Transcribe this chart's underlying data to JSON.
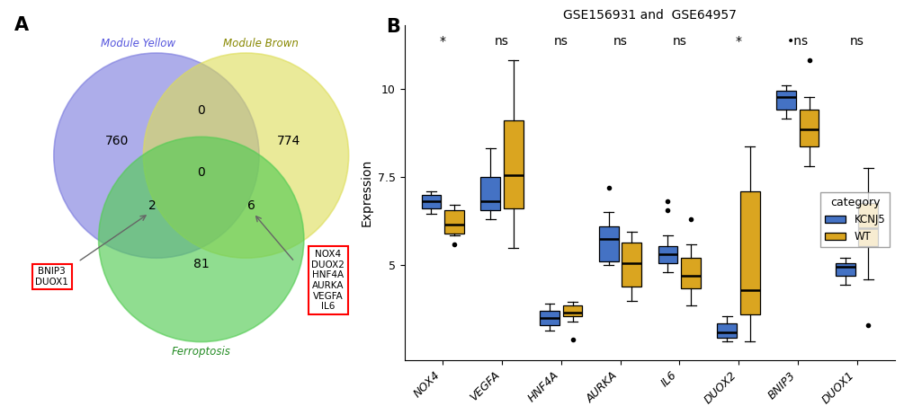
{
  "venn": {
    "labels": [
      "Module Yellow",
      "Module Brown",
      "Ferroptosis"
    ],
    "label_colors": [
      "#5555dd",
      "#888800",
      "#228B22"
    ],
    "circle_colors": [
      "#7777dd",
      "#dddd55",
      "#55cc55"
    ],
    "circle_alphas": [
      0.6,
      0.6,
      0.65
    ],
    "counts": {
      "yellow_only": "760",
      "brown_only": "774",
      "ferroptosis_only": "81",
      "yellow_brown": "0",
      "yellow_ferroptosis": "2",
      "brown_ferroptosis": "6",
      "all_three": "0"
    },
    "left_box_genes": [
      "BNIP3",
      "DUOX1"
    ],
    "right_box_genes": [
      "NOX4",
      "DUOX2",
      "HNF4A",
      "AURKA",
      "VEGFA",
      "IL6"
    ]
  },
  "boxplot": {
    "title": "GSE156931 and  GSE64957",
    "ylabel": "Expression",
    "genes": [
      "NOX4",
      "VEGFA",
      "HNF4A",
      "AURKA",
      "IL6",
      "DUOX2",
      "BNIP3",
      "DUOX1"
    ],
    "significance": [
      "*",
      "ns",
      "ns",
      "ns",
      "ns",
      "*",
      "•ns",
      "ns"
    ],
    "KCNJ5_color": "#4472c4",
    "WT_color": "#DAA520",
    "KCNJ5_data": {
      "NOX4": {
        "whislo": 6.45,
        "q1": 6.6,
        "med": 6.82,
        "q3": 6.98,
        "whishi": 7.1,
        "fliers": []
      },
      "VEGFA": {
        "whislo": 6.3,
        "q1": 6.55,
        "med": 6.8,
        "q3": 7.5,
        "whishi": 8.3,
        "fliers": []
      },
      "HNF4A": {
        "whislo": 3.15,
        "q1": 3.3,
        "med": 3.5,
        "q3": 3.7,
        "whishi": 3.9,
        "fliers": []
      },
      "AURKA": {
        "whislo": 5.0,
        "q1": 5.1,
        "med": 5.75,
        "q3": 6.1,
        "whishi": 6.5,
        "fliers": [
          7.2
        ]
      },
      "IL6": {
        "whislo": 4.8,
        "q1": 5.05,
        "med": 5.3,
        "q3": 5.55,
        "whishi": 5.85,
        "fliers": [
          6.55,
          6.8
        ]
      },
      "DUOX2": {
        "whislo": 2.85,
        "q1": 2.95,
        "med": 3.1,
        "q3": 3.35,
        "whishi": 3.55,
        "fliers": []
      },
      "BNIP3": {
        "whislo": 9.15,
        "q1": 9.4,
        "med": 9.75,
        "q3": 9.95,
        "whishi": 10.1,
        "fliers": []
      },
      "DUOX1": {
        "whislo": 4.45,
        "q1": 4.7,
        "med": 4.95,
        "q3": 5.05,
        "whishi": 5.2,
        "fliers": []
      }
    },
    "WT_data": {
      "NOX4": {
        "whislo": 5.85,
        "q1": 5.9,
        "med": 6.15,
        "q3": 6.55,
        "whishi": 6.7,
        "fliers": [
          5.6
        ]
      },
      "VEGFA": {
        "whislo": 5.5,
        "q1": 6.6,
        "med": 7.55,
        "q3": 9.1,
        "whishi": 10.8,
        "fliers": []
      },
      "HNF4A": {
        "whislo": 3.4,
        "q1": 3.55,
        "med": 3.65,
        "q3": 3.85,
        "whishi": 3.95,
        "fliers": [
          2.9
        ]
      },
      "AURKA": {
        "whislo": 4.0,
        "q1": 4.4,
        "med": 5.05,
        "q3": 5.65,
        "whishi": 5.95,
        "fliers": []
      },
      "IL6": {
        "whislo": 3.85,
        "q1": 4.35,
        "med": 4.7,
        "q3": 5.2,
        "whishi": 5.6,
        "fliers": [
          6.3
        ]
      },
      "DUOX2": {
        "whislo": 2.85,
        "q1": 3.6,
        "med": 4.3,
        "q3": 7.1,
        "whishi": 8.35,
        "fliers": []
      },
      "BNIP3": {
        "whislo": 7.8,
        "q1": 8.35,
        "med": 8.85,
        "q3": 9.4,
        "whishi": 9.75,
        "fliers": [
          10.8
        ]
      },
      "DUOX1": {
        "whislo": 4.6,
        "q1": 5.55,
        "med": 6.05,
        "q3": 6.75,
        "whishi": 7.75,
        "fliers": [
          3.3
        ]
      }
    },
    "ylim": [
      2.3,
      11.8
    ],
    "yticks": [
      5.0,
      7.5,
      10.0
    ],
    "legend_title": "category",
    "legend_labels": [
      "KCNJ5",
      "WT"
    ]
  }
}
